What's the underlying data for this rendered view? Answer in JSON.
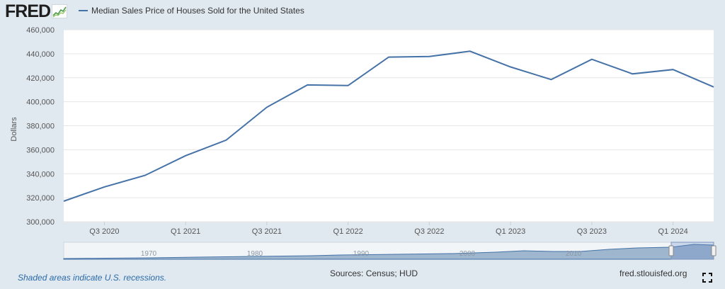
{
  "brand": {
    "logo_text": "FRED"
  },
  "legend": {
    "series_label": "Median Sales Price of Houses Sold for the United States"
  },
  "chart_data": {
    "type": "line",
    "title": "Median Sales Price of Houses Sold for the United States",
    "xlabel": "",
    "ylabel": "Dollars",
    "ylim": [
      300000,
      460000
    ],
    "y_ticks": [
      300000,
      320000,
      340000,
      360000,
      380000,
      400000,
      420000,
      440000,
      460000
    ],
    "y_tick_labels": [
      "300,000",
      "320,000",
      "340,000",
      "360,000",
      "380,000",
      "400,000",
      "420,000",
      "440,000",
      "460,000"
    ],
    "x_tick_labels": [
      "Q3 2020",
      "Q1 2021",
      "Q3 2021",
      "Q1 2022",
      "Q3 2022",
      "Q1 2023",
      "Q3 2023",
      "Q1 2024"
    ],
    "x": [
      "Q2 2020",
      "Q3 2020",
      "Q4 2020",
      "Q1 2021",
      "Q2 2021",
      "Q3 2021",
      "Q4 2021",
      "Q1 2022",
      "Q2 2022",
      "Q3 2022",
      "Q4 2022",
      "Q1 2023",
      "Q2 2023",
      "Q3 2023",
      "Q4 2023",
      "Q1 2024",
      "Q2 2024"
    ],
    "series": [
      {
        "name": "Median Sales Price of Houses Sold for the United States",
        "color": "#4572a7",
        "values": [
          317100,
          329000,
          338600,
          355000,
          368000,
          395400,
          414000,
          413500,
          437200,
          437700,
          442100,
          429000,
          418500,
          435400,
          423200,
          426800,
          412300
        ]
      }
    ],
    "grid": true,
    "navigator": {
      "labels": [
        "1970",
        "1980",
        "1990",
        "2000",
        "2010"
      ]
    }
  },
  "footer": {
    "recession_note": "Shaded areas indicate U.S. recessions.",
    "sources": "Sources: Census; HUD",
    "site": "fred.stlouisfed.org"
  },
  "icons": {
    "fullscreen": "fullscreen-icon"
  }
}
